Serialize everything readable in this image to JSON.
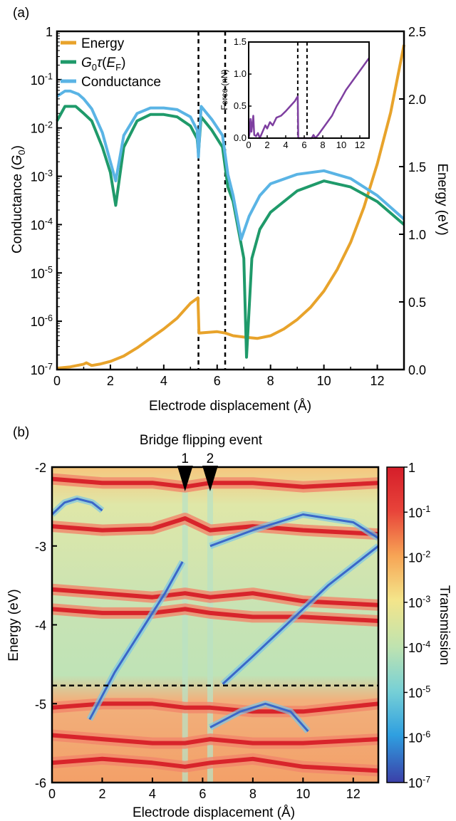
{
  "chart_data": [
    {
      "panel_label": "(a)",
      "type": "line",
      "xlabel": "Electrode displacement (Å)",
      "ylabel_left": "Conductance (G0)",
      "ylabel_right": "Energy (eV)",
      "xlim": [
        0,
        13
      ],
      "ylim_left": [
        1e-07,
        1
      ],
      "ylim_left_scale": "log",
      "ylim_right": [
        0.0,
        2.5
      ],
      "x_ticks": [
        "0",
        "2",
        "4",
        "6",
        "8",
        "10",
        "12"
      ],
      "y_left_ticks": [
        "10-7",
        "10-6",
        "10-5",
        "10-4",
        "10-3",
        "10-2",
        "10-1",
        "1"
      ],
      "y_right_ticks": [
        "0.0",
        "0.5",
        "1.0",
        "1.5",
        "2.0",
        "2.5"
      ],
      "vlines": [
        5.3,
        6.3
      ],
      "legend_position": "top-left",
      "series": [
        {
          "name": "Energy",
          "axis": "right",
          "color": "#e8a32b",
          "x": [
            0,
            0.5,
            1,
            1.1,
            1.3,
            1.6,
            2,
            2.5,
            3,
            3.5,
            4,
            4.5,
            5,
            5.28,
            5.32,
            6,
            6.3,
            6.6,
            7,
            7.5,
            8,
            8.5,
            9,
            9.5,
            10,
            10.5,
            11,
            11.5,
            12,
            12.5,
            13
          ],
          "y": [
            0.01,
            0.02,
            0.04,
            0.05,
            0.03,
            0.04,
            0.06,
            0.1,
            0.16,
            0.23,
            0.3,
            0.38,
            0.49,
            0.53,
            0.27,
            0.28,
            0.27,
            0.25,
            0.24,
            0.23,
            0.25,
            0.3,
            0.37,
            0.46,
            0.58,
            0.74,
            0.94,
            1.2,
            1.52,
            1.9,
            2.4
          ]
        },
        {
          "name": "G0τ(EF)",
          "axis": "left",
          "color": "#1f9a6a",
          "x": [
            0,
            0.3,
            0.7,
            1,
            1.3,
            1.7,
            2,
            2.2,
            2.5,
            3,
            3.5,
            4,
            4.5,
            5,
            5.25,
            5.3,
            5.4,
            5.8,
            6.2,
            6.4,
            6.6,
            7,
            7.1,
            7.3,
            7.6,
            8,
            9,
            10,
            11,
            12,
            13
          ],
          "y": [
            0.014,
            0.028,
            0.028,
            0.02,
            0.014,
            0.004,
            0.0012,
            0.00025,
            0.004,
            0.014,
            0.019,
            0.019,
            0.017,
            0.011,
            0.006,
            0.003,
            0.017,
            0.009,
            0.004,
            0.0006,
            0.0003,
            2e-05,
            1.8e-07,
            2e-05,
            8e-05,
            0.00018,
            0.0005,
            0.0008,
            0.0006,
            0.0003,
            0.0001
          ]
        },
        {
          "name": "Conductance",
          "axis": "left",
          "color": "#5ab4e5",
          "x": [
            0,
            0.3,
            0.5,
            0.8,
            1,
            1.3,
            1.7,
            2,
            2.2,
            2.5,
            3,
            3.5,
            4,
            4.5,
            5,
            5.25,
            5.3,
            5.4,
            5.8,
            6.2,
            6.4,
            6.6,
            6.9,
            7.2,
            7.6,
            8,
            9,
            10,
            11,
            12,
            13
          ],
          "y": [
            0.045,
            0.058,
            0.058,
            0.05,
            0.04,
            0.025,
            0.008,
            0.002,
            0.0008,
            0.007,
            0.02,
            0.026,
            0.026,
            0.024,
            0.017,
            0.009,
            0.0025,
            0.028,
            0.015,
            0.007,
            0.0011,
            0.0004,
            5e-05,
            0.00015,
            0.0004,
            0.0007,
            0.0011,
            0.0013,
            0.0009,
            0.0004,
            0.00013
          ]
        }
      ],
      "inset": {
        "type": "line",
        "ylabel": "Force (nN)",
        "xlim": [
          0,
          13
        ],
        "ylim": [
          0,
          1.5
        ],
        "x_ticks": [
          "0",
          "2",
          "4",
          "6",
          "8",
          "10",
          "12"
        ],
        "y_ticks": [
          "0.0",
          "0.5",
          "1.0",
          "1.5"
        ],
        "vlines": [
          5.3,
          6.3
        ],
        "color": "#7e3fa0",
        "x": [
          0,
          0.1,
          0.2,
          0.3,
          0.5,
          0.6,
          0.8,
          1,
          1.2,
          1.5,
          1.8,
          2,
          2.3,
          2.6,
          3,
          3.5,
          4,
          4.5,
          5,
          5.2,
          5.3,
          5.35,
          6,
          6.4,
          6.8,
          7,
          7.2,
          7.5,
          8,
          8.5,
          9,
          9.5,
          10,
          10.5,
          11,
          11.5,
          12,
          12.5,
          13
        ],
        "y": [
          0,
          0.08,
          0.3,
          0.1,
          0.35,
          0.05,
          0.03,
          0.08,
          0.0,
          0.1,
          0.2,
          0.15,
          0.25,
          0.2,
          0.32,
          0.35,
          0.42,
          0.5,
          0.58,
          0.63,
          0.65,
          0.0,
          0.0,
          0.0,
          0.0,
          0.05,
          0.0,
          0.05,
          0.15,
          0.25,
          0.35,
          0.5,
          0.62,
          0.75,
          0.85,
          0.95,
          1.05,
          1.15,
          1.25
        ]
      }
    },
    {
      "panel_label": "(b)",
      "type": "heatmap",
      "title": "Bridge flipping event",
      "xlabel": "Electrode displacement (Å)",
      "ylabel": "Energy (eV)",
      "xlim": [
        0,
        13
      ],
      "ylim": [
        -6,
        -2
      ],
      "x_ticks": [
        "0",
        "2",
        "4",
        "6",
        "8",
        "10",
        "12"
      ],
      "y_ticks": [
        "-2",
        "-3",
        "-4",
        "-5",
        "-6"
      ],
      "colorbar_label": "Transmission",
      "colorbar_scale": "log",
      "colorbar_ticks": [
        "1",
        "10-1",
        "10-2",
        "10-3",
        "10-4",
        "10-5",
        "10-6",
        "10-7"
      ],
      "colormap": [
        "#3b3fa8",
        "#2f9fe0",
        "#77d0d6",
        "#bfe3b0",
        "#f4e58a",
        "#f7a455",
        "#e8443a",
        "#d51e2a"
      ],
      "hline": -4.77,
      "markers": [
        {
          "label": "1",
          "x": 5.3
        },
        {
          "label": "2",
          "x": 6.3
        }
      ],
      "bands": [
        {
          "x": [
            0,
            2,
            4,
            5.3,
            6.3,
            8,
            10,
            13
          ],
          "y": [
            -2.15,
            -2.2,
            -2.2,
            -2.25,
            -2.2,
            -2.2,
            -2.25,
            -2.2
          ],
          "level": "high"
        },
        {
          "x": [
            0,
            2,
            4,
            5.3,
            6.3,
            8,
            10,
            13
          ],
          "y": [
            -2.75,
            -2.8,
            -2.78,
            -2.65,
            -2.8,
            -2.75,
            -2.8,
            -2.85
          ],
          "level": "high"
        },
        {
          "x": [
            0,
            2,
            4,
            5.3,
            6.3,
            8,
            10,
            13
          ],
          "y": [
            -3.55,
            -3.6,
            -3.65,
            -3.6,
            -3.65,
            -3.6,
            -3.7,
            -3.75
          ],
          "level": "high"
        },
        {
          "x": [
            0,
            2,
            4,
            5.3,
            6.3,
            8,
            10,
            13
          ],
          "y": [
            -3.8,
            -3.85,
            -3.85,
            -3.8,
            -3.85,
            -3.9,
            -3.9,
            -3.95
          ],
          "level": "high"
        },
        {
          "x": [
            0,
            2,
            4,
            5.3,
            6.3,
            8,
            10,
            13
          ],
          "y": [
            -5.05,
            -5.0,
            -5.0,
            -5.05,
            -5.05,
            -5.1,
            -5.1,
            -5.0
          ],
          "level": "high"
        },
        {
          "x": [
            0,
            2,
            4,
            5.3,
            6.3,
            8,
            10,
            13
          ],
          "y": [
            -5.4,
            -5.45,
            -5.5,
            -5.5,
            -5.45,
            -5.5,
            -5.5,
            -5.45
          ],
          "level": "high"
        },
        {
          "x": [
            0,
            2,
            4,
            5.3,
            6.3,
            8,
            10,
            13
          ],
          "y": [
            -5.75,
            -5.7,
            -5.75,
            -5.8,
            -5.75,
            -5.7,
            -5.8,
            -5.85
          ],
          "level": "high"
        },
        {
          "x": [
            6.8,
            8,
            9,
            10,
            11,
            12,
            13
          ],
          "y": [
            -4.75,
            -4.4,
            -4.1,
            -3.8,
            -3.5,
            -3.25,
            -3.0
          ],
          "level": "low"
        },
        {
          "x": [
            6.3,
            8,
            10,
            12,
            13
          ],
          "y": [
            -3.0,
            -2.8,
            -2.6,
            -2.7,
            -2.9
          ],
          "level": "low"
        },
        {
          "x": [
            1.5,
            2.5,
            3.5,
            4.5,
            5.2
          ],
          "y": [
            -5.2,
            -4.6,
            -4.1,
            -3.6,
            -3.2
          ],
          "level": "low"
        },
        {
          "x": [
            0,
            0.5,
            1,
            1.6,
            2
          ],
          "y": [
            -2.6,
            -2.45,
            -2.4,
            -2.45,
            -2.55
          ],
          "level": "low"
        },
        {
          "x": [
            6.3,
            7.5,
            8.5,
            9.5,
            10.2
          ],
          "y": [
            -5.3,
            -5.1,
            -5.0,
            -5.1,
            -5.35
          ],
          "level": "low"
        }
      ]
    }
  ]
}
